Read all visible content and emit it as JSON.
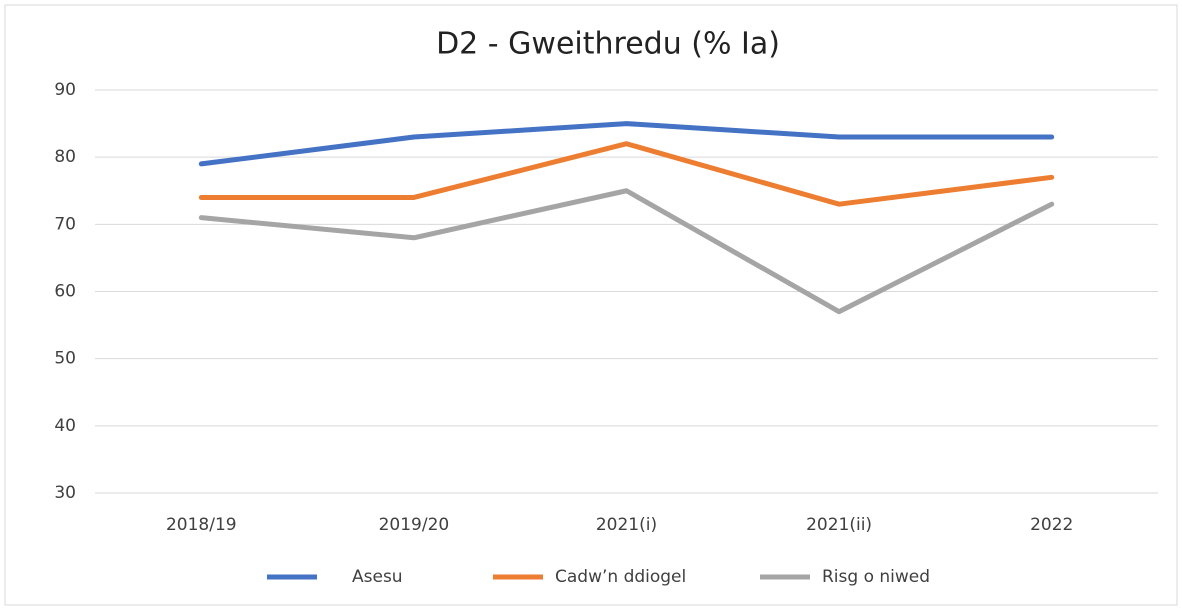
{
  "chart_data": {
    "type": "line",
    "title": "D2 - Gweithredu (% Ia)",
    "categories": [
      "2018/19",
      "2019/20",
      "2021(i)",
      "2021(ii)",
      "2022"
    ],
    "series": [
      {
        "name": "Asesu",
        "color": "#4472c4",
        "values": [
          79,
          83,
          85,
          83,
          83
        ]
      },
      {
        "name": "Cadw’n ddiogel",
        "color": "#ed7d31",
        "values": [
          74,
          74,
          82,
          73,
          77
        ]
      },
      {
        "name": "Risg o niwed",
        "color": "#a5a5a5",
        "values": [
          71,
          68,
          75,
          57,
          73
        ]
      }
    ],
    "ylim": [
      30,
      90
    ],
    "yticks": [
      30,
      40,
      50,
      60,
      70,
      80,
      90
    ],
    "grid": true,
    "legend": "bottom"
  }
}
